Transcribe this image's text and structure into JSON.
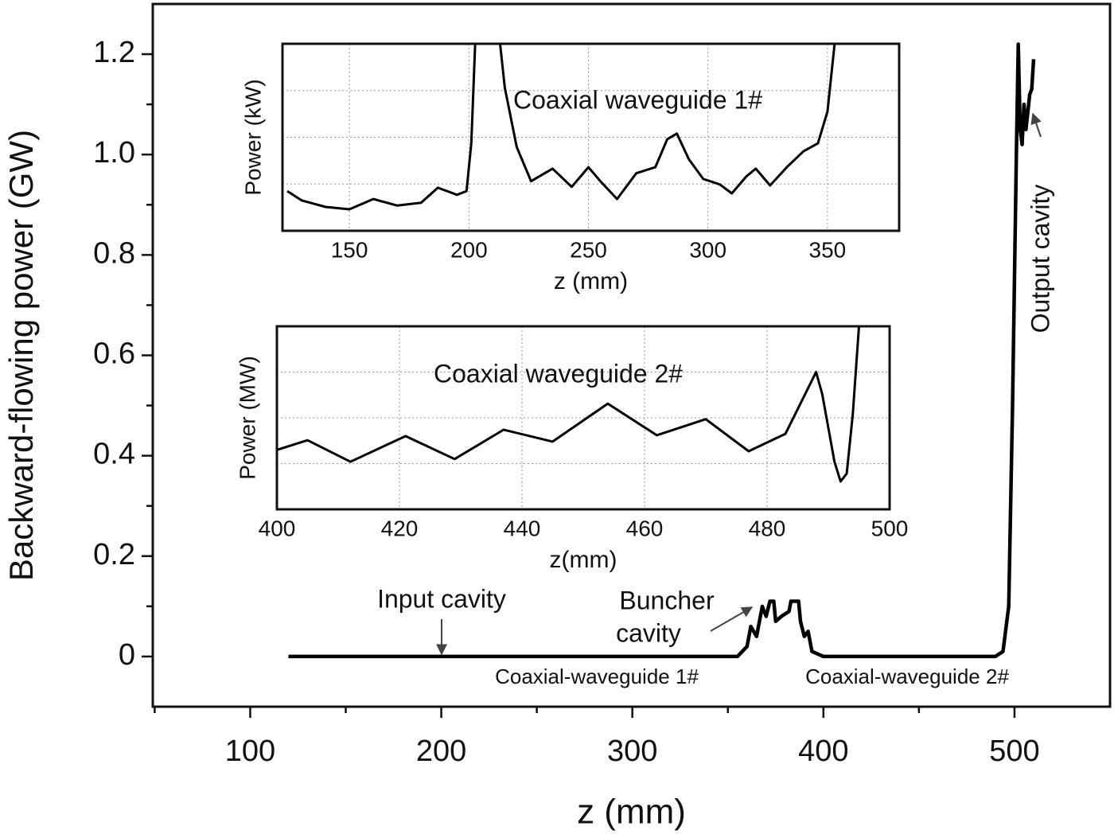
{
  "chart_data": [
    {
      "type": "line",
      "xlabel": "z (mm)",
      "ylabel": "Backward-flowing power (GW)",
      "xlim": [
        49,
        550
      ],
      "ylim": [
        -0.1,
        1.3
      ],
      "xticks": [
        100,
        200,
        300,
        400,
        500
      ],
      "yticks": [
        0,
        0.2,
        0.4,
        0.6,
        0.8,
        {
          "value": 1.0,
          "label": "1.0"
        },
        1.2
      ],
      "annotations": [
        "Input cavity",
        "Buncher",
        "cavity",
        "Output cavity",
        "Coaxial-waveguide 1#",
        "Coaxial-waveguide 2#"
      ],
      "x": [
        120,
        355,
        360,
        362,
        365,
        368,
        370,
        372,
        374,
        375,
        378,
        382,
        383,
        387,
        388,
        390,
        392,
        394,
        400,
        490,
        494,
        497,
        499,
        501,
        502,
        503,
        504,
        505,
        506,
        508,
        509,
        510
      ],
      "series": [
        {
          "color": "#000000",
          "values": [
            0,
            0,
            0.02,
            0.06,
            0.04,
            0.1,
            0.08,
            0.11,
            0.11,
            0.07,
            0.08,
            0.09,
            0.11,
            0.11,
            0.07,
            0.04,
            0.05,
            0.01,
            0,
            0,
            0.01,
            0.1,
            0.5,
            1.0,
            1.22,
            1.05,
            1.02,
            1.1,
            1.05,
            1.12,
            1.13,
            1.19
          ]
        }
      ]
    },
    {
      "type": "line",
      "annotation": "Coaxial waveguide 1#",
      "xlabel": "z (mm)",
      "ylabel": "Power (kW)",
      "xlim": [
        122,
        380
      ],
      "ylim": [
        0,
        4
      ],
      "xticks": [
        150,
        200,
        250,
        300,
        350
      ],
      "x": [
        124,
        130,
        140,
        150,
        160,
        170,
        180,
        187,
        195,
        199,
        201,
        203,
        212,
        215,
        220,
        226,
        235,
        243,
        250,
        255,
        262,
        270,
        278,
        283,
        287,
        292,
        298,
        305,
        310,
        316,
        320,
        326,
        333,
        340,
        346,
        350,
        353,
        354
      ],
      "series": [
        {
          "color": "#000000",
          "values": [
            0.85,
            0.65,
            0.51,
            0.46,
            0.68,
            0.54,
            0.6,
            0.92,
            0.77,
            0.85,
            1.87,
            4.5,
            4.5,
            3.06,
            1.79,
            1.06,
            1.33,
            0.94,
            1.36,
            1.06,
            0.68,
            1.23,
            1.36,
            1.96,
            2.08,
            1.53,
            1.11,
            0.99,
            0.8,
            1.16,
            1.33,
            0.97,
            1.36,
            1.7,
            1.87,
            2.55,
            4.0,
            4.5
          ]
        }
      ]
    },
    {
      "type": "line",
      "annotation": "Coaxial waveguide 2#",
      "xlabel": "z(mm)",
      "ylabel": "Power (MW)",
      "xlim": [
        400,
        500
      ],
      "ylim": [
        0,
        4
      ],
      "xticks": [
        400,
        420,
        440,
        460,
        480,
        500
      ],
      "x": [
        400,
        405,
        412,
        421,
        429,
        437,
        445,
        454,
        462,
        470,
        477,
        483,
        488,
        489,
        491,
        492,
        493,
        494,
        495,
        495.5
      ],
      "series": [
        {
          "color": "#000000",
          "values": [
            1.3,
            1.51,
            1.04,
            1.6,
            1.1,
            1.74,
            1.48,
            2.31,
            1.62,
            1.97,
            1.27,
            1.65,
            3.0,
            2.52,
            1.04,
            0.61,
            0.78,
            2.09,
            4.0,
            4.5
          ]
        }
      ]
    }
  ]
}
